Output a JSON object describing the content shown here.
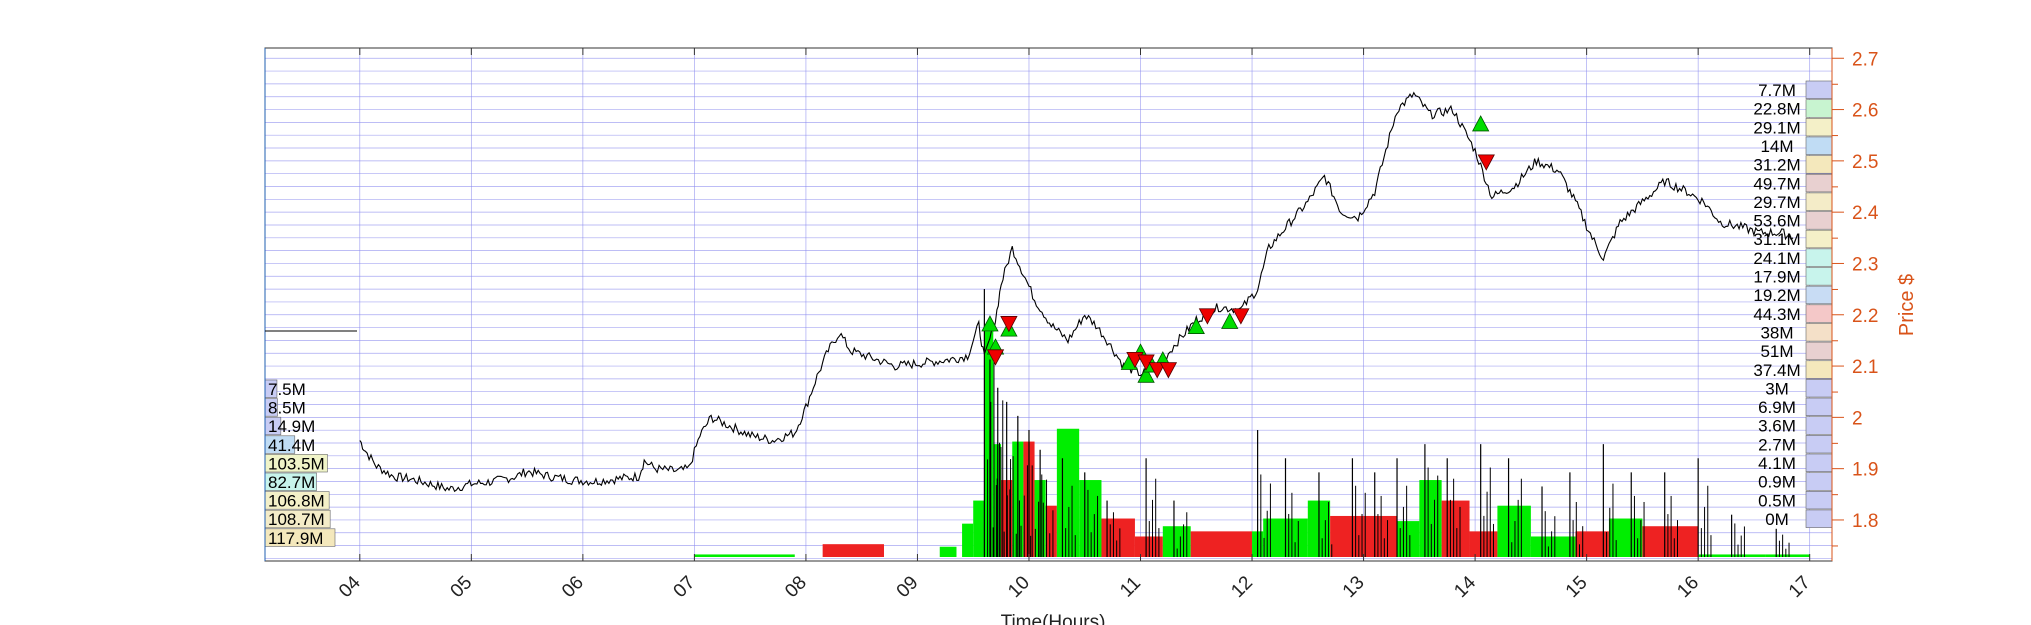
{
  "chart_data": {
    "type": "candlestick",
    "xlabel": "Time(Hours)",
    "ylabel_right": "Price $",
    "xlim": [
      3.15,
      17.2
    ],
    "ylim_right": [
      1.72,
      2.72
    ],
    "x_ticks": [
      "04",
      "05",
      "06",
      "07",
      "08",
      "09",
      "10",
      "11",
      "12",
      "13",
      "14",
      "15",
      "16",
      "17"
    ],
    "y_ticks_right": [
      "1.8",
      "1.9",
      "2",
      "2.1",
      "2.2",
      "2.3",
      "2.4",
      "2.5",
      "2.6",
      "2.7"
    ],
    "grid": true,
    "colors": {
      "price_axis": "#d95319",
      "grid": "#8a8aee",
      "price_line": "#000000",
      "buy_marker": "#00dd00",
      "sell_marker": "#ee0000",
      "volume_up": "#00ee00",
      "volume_down": "#ee2222"
    },
    "price_path": [
      [
        4.0,
        1.955
      ],
      [
        4.05,
        1.935
      ],
      [
        4.15,
        1.905
      ],
      [
        4.3,
        1.885
      ],
      [
        4.45,
        1.88
      ],
      [
        4.6,
        1.872
      ],
      [
        4.8,
        1.86
      ],
      [
        5.0,
        1.87
      ],
      [
        5.2,
        1.875
      ],
      [
        5.4,
        1.885
      ],
      [
        5.5,
        1.895
      ],
      [
        5.7,
        1.885
      ],
      [
        5.9,
        1.878
      ],
      [
        6.1,
        1.875
      ],
      [
        6.3,
        1.88
      ],
      [
        6.5,
        1.885
      ],
      [
        6.55,
        1.915
      ],
      [
        6.65,
        1.9
      ],
      [
        6.85,
        1.895
      ],
      [
        6.95,
        1.9
      ],
      [
        7.05,
        1.965
      ],
      [
        7.15,
        2.0
      ],
      [
        7.3,
        1.985
      ],
      [
        7.5,
        1.965
      ],
      [
        7.7,
        1.955
      ],
      [
        7.9,
        1.97
      ],
      [
        8.0,
        2.02
      ],
      [
        8.1,
        2.08
      ],
      [
        8.2,
        2.13
      ],
      [
        8.3,
        2.165
      ],
      [
        8.4,
        2.13
      ],
      [
        8.6,
        2.115
      ],
      [
        8.8,
        2.1
      ],
      [
        9.0,
        2.105
      ],
      [
        9.2,
        2.11
      ],
      [
        9.35,
        2.115
      ],
      [
        9.45,
        2.12
      ],
      [
        9.55,
        2.18
      ],
      [
        9.6,
        2.115
      ],
      [
        9.7,
        2.19
      ],
      [
        9.75,
        2.26
      ],
      [
        9.85,
        2.33
      ],
      [
        9.95,
        2.28
      ],
      [
        10.05,
        2.23
      ],
      [
        10.2,
        2.18
      ],
      [
        10.35,
        2.15
      ],
      [
        10.5,
        2.2
      ],
      [
        10.6,
        2.18
      ],
      [
        10.7,
        2.15
      ],
      [
        10.85,
        2.1
      ],
      [
        11.0,
        2.085
      ],
      [
        11.15,
        2.095
      ],
      [
        11.3,
        2.14
      ],
      [
        11.5,
        2.19
      ],
      [
        11.7,
        2.215
      ],
      [
        11.9,
        2.21
      ],
      [
        12.05,
        2.25
      ],
      [
        12.15,
        2.33
      ],
      [
        12.3,
        2.37
      ],
      [
        12.5,
        2.42
      ],
      [
        12.65,
        2.47
      ],
      [
        12.8,
        2.4
      ],
      [
        12.95,
        2.39
      ],
      [
        13.1,
        2.44
      ],
      [
        13.3,
        2.6
      ],
      [
        13.45,
        2.63
      ],
      [
        13.6,
        2.59
      ],
      [
        13.8,
        2.6
      ],
      [
        14.0,
        2.52
      ],
      [
        14.15,
        2.43
      ],
      [
        14.35,
        2.45
      ],
      [
        14.55,
        2.5
      ],
      [
        14.75,
        2.48
      ],
      [
        14.9,
        2.42
      ],
      [
        15.05,
        2.35
      ],
      [
        15.15,
        2.31
      ],
      [
        15.3,
        2.38
      ],
      [
        15.5,
        2.42
      ],
      [
        15.7,
        2.46
      ],
      [
        15.9,
        2.44
      ],
      [
        16.05,
        2.42
      ],
      [
        16.2,
        2.38
      ],
      [
        16.4,
        2.37
      ],
      [
        16.55,
        2.36
      ],
      [
        16.75,
        2.36
      ],
      [
        16.85,
        2.35
      ]
    ],
    "buy_signals": [
      [
        9.65,
        2.18
      ],
      [
        9.7,
        2.135
      ],
      [
        9.82,
        2.17
      ],
      [
        10.9,
        2.105
      ],
      [
        11.0,
        2.125
      ],
      [
        11.05,
        2.08
      ],
      [
        11.1,
        2.1
      ],
      [
        11.2,
        2.11
      ],
      [
        11.5,
        2.175
      ],
      [
        11.8,
        2.185
      ],
      [
        14.05,
        2.57
      ]
    ],
    "sell_signals": [
      [
        9.7,
        2.12
      ],
      [
        9.82,
        2.185
      ],
      [
        10.95,
        2.115
      ],
      [
        11.05,
        2.11
      ],
      [
        11.15,
        2.095
      ],
      [
        11.25,
        2.095
      ],
      [
        11.6,
        2.2
      ],
      [
        11.9,
        2.2
      ],
      [
        14.1,
        2.5
      ]
    ],
    "volume_bars": [
      {
        "from": 7.0,
        "to": 7.9,
        "height": 0.01,
        "side": "up"
      },
      {
        "from": 8.15,
        "to": 8.7,
        "height": 0.05,
        "side": "down"
      },
      {
        "from": 9.2,
        "to": 9.35,
        "height": 0.04,
        "side": "up"
      },
      {
        "from": 9.4,
        "to": 9.5,
        "height": 0.13,
        "side": "up"
      },
      {
        "from": 9.5,
        "to": 9.6,
        "height": 0.22,
        "side": "up"
      },
      {
        "from": 9.6,
        "to": 9.68,
        "height": 0.88,
        "side": "up"
      },
      {
        "from": 9.68,
        "to": 9.75,
        "height": 0.44,
        "side": "up"
      },
      {
        "from": 9.75,
        "to": 9.85,
        "height": 0.3,
        "side": "down"
      },
      {
        "from": 9.85,
        "to": 9.95,
        "height": 0.45,
        "side": "up"
      },
      {
        "from": 9.95,
        "to": 10.05,
        "height": 0.45,
        "side": "down"
      },
      {
        "from": 10.05,
        "to": 10.15,
        "height": 0.3,
        "side": "up"
      },
      {
        "from": 10.15,
        "to": 10.25,
        "height": 0.2,
        "side": "down"
      },
      {
        "from": 10.25,
        "to": 10.45,
        "height": 0.5,
        "side": "up"
      },
      {
        "from": 10.45,
        "to": 10.65,
        "height": 0.3,
        "side": "up"
      },
      {
        "from": 10.65,
        "to": 10.95,
        "height": 0.15,
        "side": "down"
      },
      {
        "from": 10.95,
        "to": 11.2,
        "height": 0.08,
        "side": "down"
      },
      {
        "from": 11.2,
        "to": 11.45,
        "height": 0.12,
        "side": "up"
      },
      {
        "from": 11.45,
        "to": 12.0,
        "height": 0.1,
        "side": "down"
      },
      {
        "from": 12.0,
        "to": 12.1,
        "height": 0.1,
        "side": "up"
      },
      {
        "from": 12.1,
        "to": 12.5,
        "height": 0.15,
        "side": "up"
      },
      {
        "from": 12.5,
        "to": 12.7,
        "height": 0.22,
        "side": "up"
      },
      {
        "from": 12.7,
        "to": 12.95,
        "height": 0.16,
        "side": "down"
      },
      {
        "from": 12.95,
        "to": 13.3,
        "height": 0.16,
        "side": "down"
      },
      {
        "from": 13.3,
        "to": 13.5,
        "height": 0.14,
        "side": "up"
      },
      {
        "from": 13.5,
        "to": 13.7,
        "height": 0.3,
        "side": "up"
      },
      {
        "from": 13.7,
        "to": 13.95,
        "height": 0.22,
        "side": "down"
      },
      {
        "from": 13.95,
        "to": 14.2,
        "height": 0.1,
        "side": "down"
      },
      {
        "from": 14.2,
        "to": 14.5,
        "height": 0.2,
        "side": "up"
      },
      {
        "from": 14.5,
        "to": 14.9,
        "height": 0.08,
        "side": "up"
      },
      {
        "from": 14.9,
        "to": 15.2,
        "height": 0.1,
        "side": "down"
      },
      {
        "from": 15.2,
        "to": 15.5,
        "height": 0.15,
        "side": "up"
      },
      {
        "from": 15.5,
        "to": 16.0,
        "height": 0.12,
        "side": "down"
      },
      {
        "from": 16.0,
        "to": 16.6,
        "height": 0.01,
        "side": "up"
      },
      {
        "from": 16.6,
        "to": 17.0,
        "height": 0.01,
        "side": "up"
      }
    ],
    "volume_spikes": [
      [
        9.6,
        0.95
      ],
      [
        9.65,
        0.7
      ],
      [
        9.72,
        0.6
      ],
      [
        9.8,
        0.55
      ],
      [
        9.9,
        0.5
      ],
      [
        10.0,
        0.45
      ],
      [
        10.1,
        0.38
      ],
      [
        10.3,
        0.35
      ],
      [
        10.5,
        0.3
      ],
      [
        10.7,
        0.2
      ],
      [
        11.05,
        0.35
      ],
      [
        11.3,
        0.2
      ],
      [
        12.05,
        0.45
      ],
      [
        12.3,
        0.35
      ],
      [
        12.6,
        0.3
      ],
      [
        12.9,
        0.35
      ],
      [
        13.1,
        0.3
      ],
      [
        13.3,
        0.35
      ],
      [
        13.55,
        0.4
      ],
      [
        13.75,
        0.35
      ],
      [
        14.05,
        0.4
      ],
      [
        14.3,
        0.35
      ],
      [
        14.6,
        0.25
      ],
      [
        14.85,
        0.3
      ],
      [
        15.15,
        0.4
      ],
      [
        15.4,
        0.3
      ],
      [
        15.7,
        0.3
      ],
      [
        16.0,
        0.35
      ],
      [
        16.3,
        0.15
      ],
      [
        16.7,
        0.1
      ]
    ],
    "volume_profile_left": [
      {
        "label": "7.5M",
        "value": 7.5,
        "color": "#c8ccf4"
      },
      {
        "label": "8.5M",
        "value": 8.5,
        "color": "#c8ccf4"
      },
      {
        "label": "14.9M",
        "value": 14.9,
        "color": "#c8ccf4"
      },
      {
        "label": "41.4M",
        "value": 41.4,
        "color": "#c0dcf4"
      },
      {
        "label": "103.5M",
        "value": 103.5,
        "color": "#f0f4c8"
      },
      {
        "label": "82.7M",
        "value": 82.7,
        "color": "#c8f4ec"
      },
      {
        "label": "106.8M",
        "value": 106.8,
        "color": "#f4f0c8"
      },
      {
        "label": "108.7M",
        "value": 108.7,
        "color": "#f4ecc8"
      },
      {
        "label": "117.9M",
        "value": 117.9,
        "color": "#f4e8bc"
      }
    ],
    "volume_profile_right": [
      {
        "label": "7.7M",
        "value": 7.7,
        "color": "#c8ccf4"
      },
      {
        "label": "22.8M",
        "value": 22.8,
        "color": "#c8f4d0"
      },
      {
        "label": "29.1M",
        "value": 29.1,
        "color": "#f4f0c8"
      },
      {
        "label": "14M",
        "value": 14.0,
        "color": "#c0dcf4"
      },
      {
        "label": "31.2M",
        "value": 31.2,
        "color": "#f4e8bc"
      },
      {
        "label": "49.7M",
        "value": 49.7,
        "color": "#e8d0d0"
      },
      {
        "label": "29.7M",
        "value": 29.7,
        "color": "#f4ecc8"
      },
      {
        "label": "53.6M",
        "value": 53.6,
        "color": "#e8d0d0"
      },
      {
        "label": "31.1M",
        "value": 31.1,
        "color": "#f4f0c8"
      },
      {
        "label": "24.1M",
        "value": 24.1,
        "color": "#c8f4ec"
      },
      {
        "label": "17.9M",
        "value": 17.9,
        "color": "#c8f4ec"
      },
      {
        "label": "19.2M",
        "value": 19.2,
        "color": "#c8dcf4"
      },
      {
        "label": "44.3M",
        "value": 44.3,
        "color": "#f4c8c8"
      },
      {
        "label": "38M",
        "value": 38.0,
        "color": "#f4e0c8"
      },
      {
        "label": "51M",
        "value": 51.0,
        "color": "#e8d0d0"
      },
      {
        "label": "37.4M",
        "value": 37.4,
        "color": "#f4e8bc"
      },
      {
        "label": "3M",
        "value": 3.0,
        "color": "#c8ccf4"
      },
      {
        "label": "6.9M",
        "value": 6.9,
        "color": "#c8ccf4"
      },
      {
        "label": "3.6M",
        "value": 3.6,
        "color": "#c8ccf4"
      },
      {
        "label": "2.7M",
        "value": 2.7,
        "color": "#c8ccf4"
      },
      {
        "label": "4.1M",
        "value": 4.1,
        "color": "#c8ccf4"
      },
      {
        "label": "0.9M",
        "value": 0.9,
        "color": "#c8ccf4"
      },
      {
        "label": "0.5M",
        "value": 0.5,
        "color": "#c8ccf4"
      },
      {
        "label": "0M",
        "value": 0.0,
        "color": "#c8ccf4"
      }
    ]
  }
}
